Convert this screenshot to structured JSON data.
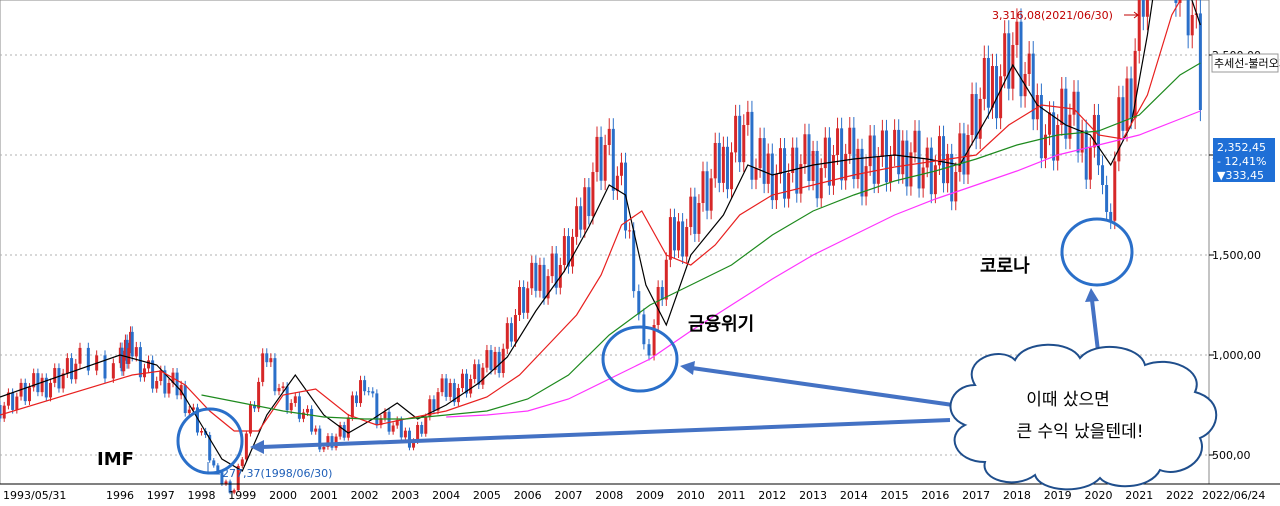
{
  "chart_data": {
    "type": "candlestick",
    "xlabel": "",
    "ylabel": "",
    "x_ticks": [
      "1993/05/31",
      "1996",
      "1997",
      "1998",
      "1999",
      "2000",
      "2001",
      "2002",
      "2003",
      "2004",
      "2005",
      "2006",
      "2007",
      "2008",
      "2009",
      "2010",
      "2011",
      "2012",
      "2013",
      "2014",
      "2015",
      "2016",
      "2017",
      "2018",
      "2019",
      "2020",
      "2021",
      "2022",
      "2022/06/24"
    ],
    "y_ticks": [
      "500,00",
      "1,000,00",
      "1,500,00",
      "2,000,00",
      "2,500,00"
    ],
    "ylim": [
      300,
      3400
    ],
    "grid": "horizontal dotted",
    "series": [
      {
        "name": "price",
        "x": [
          1995.4,
          1995.8,
          1996.3,
          1996.9,
          1997.5,
          1998.0,
          1998.4,
          1998.8,
          1999.2,
          1999.6,
          2000.0,
          2000.5,
          2001.0,
          2001.5,
          2002.0,
          2002.3,
          2002.8,
          2003.2,
          2003.8,
          2004.3,
          2004.8,
          2005.3,
          2005.8,
          2006.3,
          2006.8,
          2007.2,
          2007.6,
          2007.9,
          2008.3,
          2008.6,
          2008.85,
          2009.1,
          2009.5,
          2010.0,
          2010.5,
          2011.0,
          2011.3,
          2011.6,
          2012.0,
          2012.5,
          2013.0,
          2013.5,
          2014.0,
          2014.5,
          2015.0,
          2015.4,
          2015.8,
          2016.5,
          2017.0,
          2017.5,
          2017.9,
          2018.3,
          2018.8,
          2019.2,
          2019.6,
          2020.0,
          2020.2,
          2020.5,
          2020.8,
          2021.1,
          2021.5,
          2021.8,
          2022.1,
          2022.3,
          2022.5
        ],
        "values": [
          750,
          950,
          1030,
          870,
          820,
          620,
          380,
          330,
          700,
          1000,
          800,
          700,
          550,
          620,
          900,
          700,
          620,
          580,
          800,
          850,
          900,
          1000,
          1250,
          1400,
          1450,
          1600,
          1950,
          2050,
          1800,
          1450,
          1000,
          1150,
          1550,
          1700,
          1850,
          2050,
          2150,
          1900,
          1950,
          1900,
          1950,
          2000,
          1950,
          2000,
          1950,
          2050,
          1900,
          1950,
          2200,
          2400,
          2550,
          2300,
          2100,
          2200,
          2050,
          2100,
          1600,
          2100,
          2400,
          2900,
          3250,
          3100,
          2900,
          2700,
          2352
        ]
      },
      {
        "name": "ma-short",
        "x": [
          1995.4,
          1996.0,
          1996.9,
          1997.5,
          1998.0,
          1998.5,
          1999.0,
          1999.6,
          2000.3,
          2001.0,
          2001.6,
          2002.2,
          2002.8,
          2003.3,
          2004.0,
          2004.8,
          2005.5,
          2006.2,
          2006.9,
          2007.5,
          2008.0,
          2008.4,
          2008.9,
          2009.4,
          2010.0,
          2010.8,
          2011.4,
          2012.0,
          2013.0,
          2014.0,
          2015.0,
          2015.8,
          2016.6,
          2017.3,
          2017.9,
          2018.5,
          2019.2,
          2019.8,
          2020.3,
          2020.8,
          2021.2,
          2021.6,
          2022.0,
          2022.5
        ],
        "values": [
          790,
          1000,
          950,
          820,
          650,
          480,
          420,
          700,
          900,
          700,
          610,
          680,
          760,
          680,
          750,
          860,
          990,
          1220,
          1420,
          1640,
          1850,
          1800,
          1350,
          1150,
          1500,
          1700,
          1950,
          1900,
          1950,
          1980,
          2000,
          1980,
          1950,
          2200,
          2450,
          2250,
          2150,
          2100,
          1950,
          2150,
          2600,
          3150,
          2950,
          2650
        ]
      },
      {
        "name": "ma-mid",
        "x": [
          1995.4,
          1996.3,
          1997.0,
          1997.6,
          1998.2,
          1998.8,
          1999.4,
          2000.0,
          2000.8,
          2001.6,
          2002.3,
          2003.0,
          2004.0,
          2005.0,
          2005.8,
          2006.5,
          2007.2,
          2007.8,
          2008.3,
          2008.8,
          2009.4,
          2010.0,
          2010.6,
          2011.2,
          2012.0,
          2013.0,
          2014.0,
          2015.0,
          2016.0,
          2017.0,
          2017.8,
          2018.6,
          2019.4,
          2020.0,
          2020.6,
          2021.2,
          2021.8,
          2022.5
        ],
        "values": [
          700,
          900,
          920,
          850,
          720,
          620,
          620,
          800,
          830,
          700,
          650,
          680,
          720,
          790,
          900,
          1050,
          1200,
          1400,
          1650,
          1720,
          1500,
          1450,
          1550,
          1700,
          1800,
          1850,
          1900,
          1940,
          1970,
          2000,
          2150,
          2250,
          2230,
          2100,
          2080,
          2300,
          2700,
          2950
        ]
      },
      {
        "name": "ma-long",
        "x": [
          1998.0,
          1999.0,
          2000.0,
          2001.0,
          2002.0,
          2003.0,
          2004.0,
          2005.0,
          2006.0,
          2007.0,
          2008.0,
          2009.0,
          2010.0,
          2011.0,
          2012.0,
          2013.0,
          2014.0,
          2015.0,
          2016.0,
          2017.0,
          2018.0,
          2019.0,
          2020.0,
          2021.0,
          2022.0,
          2022.5
        ],
        "values": [
          800,
          760,
          720,
          690,
          680,
          680,
          700,
          720,
          780,
          900,
          1100,
          1250,
          1350,
          1450,
          1600,
          1720,
          1800,
          1870,
          1920,
          1980,
          2050,
          2100,
          2120,
          2200,
          2400,
          2460
        ]
      },
      {
        "name": "ma-longest",
        "x": [
          2004.0,
          2005.0,
          2006.0,
          2007.0,
          2008.0,
          2009.0,
          2010.0,
          2011.0,
          2012.0,
          2013.0,
          2014.0,
          2015.0,
          2016.0,
          2017.0,
          2018.0,
          2019.0,
          2020.0,
          2021.0,
          2022.0,
          2022.5
        ],
        "values": [
          690,
          700,
          720,
          780,
          880,
          980,
          1120,
          1250,
          1380,
          1500,
          1600,
          1700,
          1780,
          1850,
          1920,
          2000,
          2050,
          2100,
          2180,
          2220
        ]
      }
    ],
    "annotations": {
      "max_label": "3,316,08(2021/06/30)",
      "min_label": "277,37(1998/06/30)",
      "price_label": "2,352,45",
      "change_pct": "- 12,41%",
      "change_abs": "▼333,45",
      "trend_button": "추세선-불러오기",
      "imf": "IMF",
      "crisis": "금융위기",
      "corona": "코로나",
      "cloud_line1": "이때 샀으면",
      "cloud_line2": "큰 수익 났을텐데!"
    }
  },
  "colors": {
    "up": "#d62728",
    "down": "#2a6fc9",
    "ma_short": "#000000",
    "ma_mid": "#e8201f",
    "ma_long": "#1e8a1e",
    "ma_longest": "#ff33ff",
    "circle": "#2a6fc9",
    "arrow": "#4472c4"
  }
}
